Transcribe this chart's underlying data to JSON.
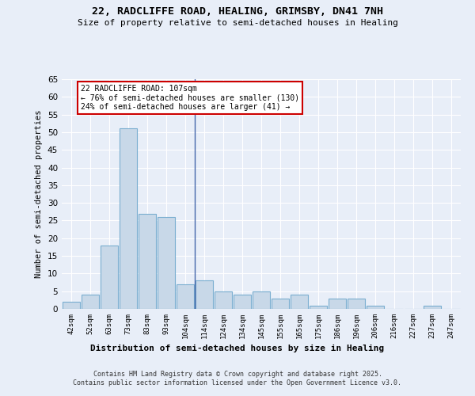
{
  "title1": "22, RADCLIFFE ROAD, HEALING, GRIMSBY, DN41 7NH",
  "title2": "Size of property relative to semi-detached houses in Healing",
  "xlabel": "Distribution of semi-detached houses by size in Healing",
  "ylabel": "Number of semi-detached properties",
  "categories": [
    "42sqm",
    "52sqm",
    "63sqm",
    "73sqm",
    "83sqm",
    "93sqm",
    "104sqm",
    "114sqm",
    "124sqm",
    "134sqm",
    "145sqm",
    "155sqm",
    "165sqm",
    "175sqm",
    "186sqm",
    "196sqm",
    "206sqm",
    "216sqm",
    "227sqm",
    "237sqm",
    "247sqm"
  ],
  "values": [
    2,
    4,
    18,
    51,
    27,
    26,
    7,
    8,
    5,
    4,
    5,
    3,
    4,
    1,
    3,
    3,
    1,
    0,
    0,
    1,
    0
  ],
  "bar_color": "#c8d8e8",
  "bar_edge_color": "#7aaed0",
  "background_color": "#e8eef8",
  "grid_color": "#ffffff",
  "vline_x_index": 6.5,
  "annotation_title": "22 RADCLIFFE ROAD: 107sqm",
  "annotation_line1": "← 76% of semi-detached houses are smaller (130)",
  "annotation_line2": "24% of semi-detached houses are larger (41) →",
  "annotation_box_facecolor": "#ffffff",
  "annotation_box_edgecolor": "#cc0000",
  "footer1": "Contains HM Land Registry data © Crown copyright and database right 2025.",
  "footer2": "Contains public sector information licensed under the Open Government Licence v3.0.",
  "ylim": [
    0,
    65
  ],
  "yticks": [
    0,
    5,
    10,
    15,
    20,
    25,
    30,
    35,
    40,
    45,
    50,
    55,
    60,
    65
  ]
}
